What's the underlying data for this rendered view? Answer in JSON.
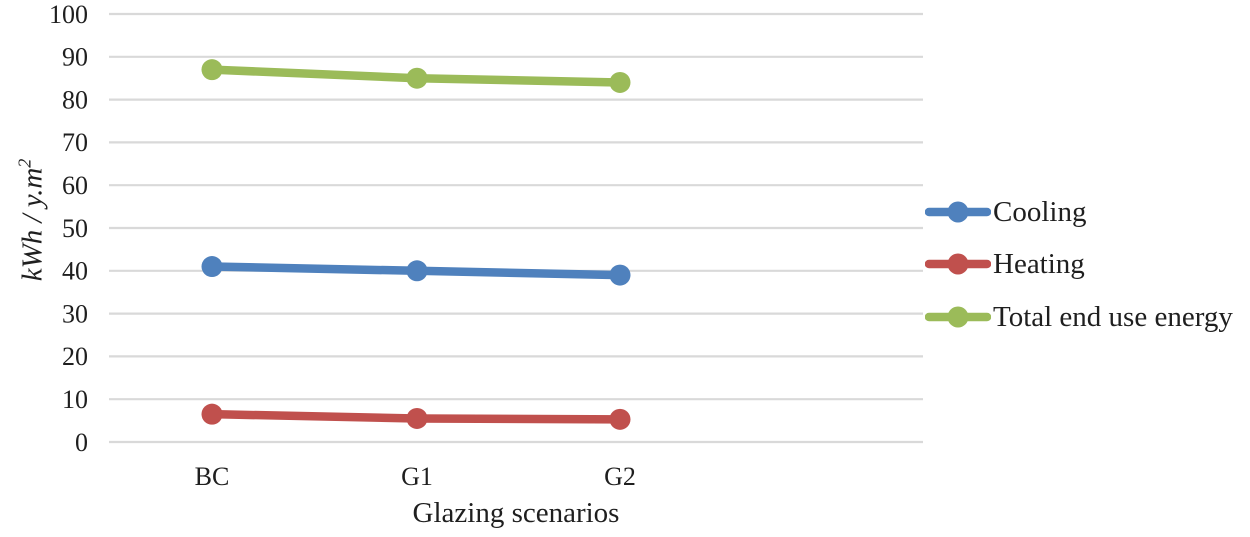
{
  "chart_data": {
    "type": "line",
    "categories": [
      "BC",
      "G1",
      "G2"
    ],
    "series": [
      {
        "name": "Cooling",
        "color": "#4F81BD",
        "values": [
          41,
          40,
          39
        ]
      },
      {
        "name": "Heating",
        "color": "#C0504D",
        "values": [
          6.5,
          5.5,
          5.3
        ]
      },
      {
        "name": "Total end use energy",
        "color": "#9BBB59",
        "values": [
          87,
          85,
          84
        ]
      }
    ],
    "xlabel": "Glazing scenarios",
    "ylabel": {
      "text": "kWh / y.m",
      "sup": "2"
    },
    "ylim": [
      0,
      100
    ],
    "yticks": [
      0,
      10,
      20,
      30,
      40,
      50,
      60,
      70,
      80,
      90,
      100
    ],
    "grid": "horizontal",
    "gridline_color": "#D9D9D9",
    "legend_position": "right",
    "marker": "circle",
    "text_color": "#1f1f1f",
    "background": "#FFFFFF"
  }
}
